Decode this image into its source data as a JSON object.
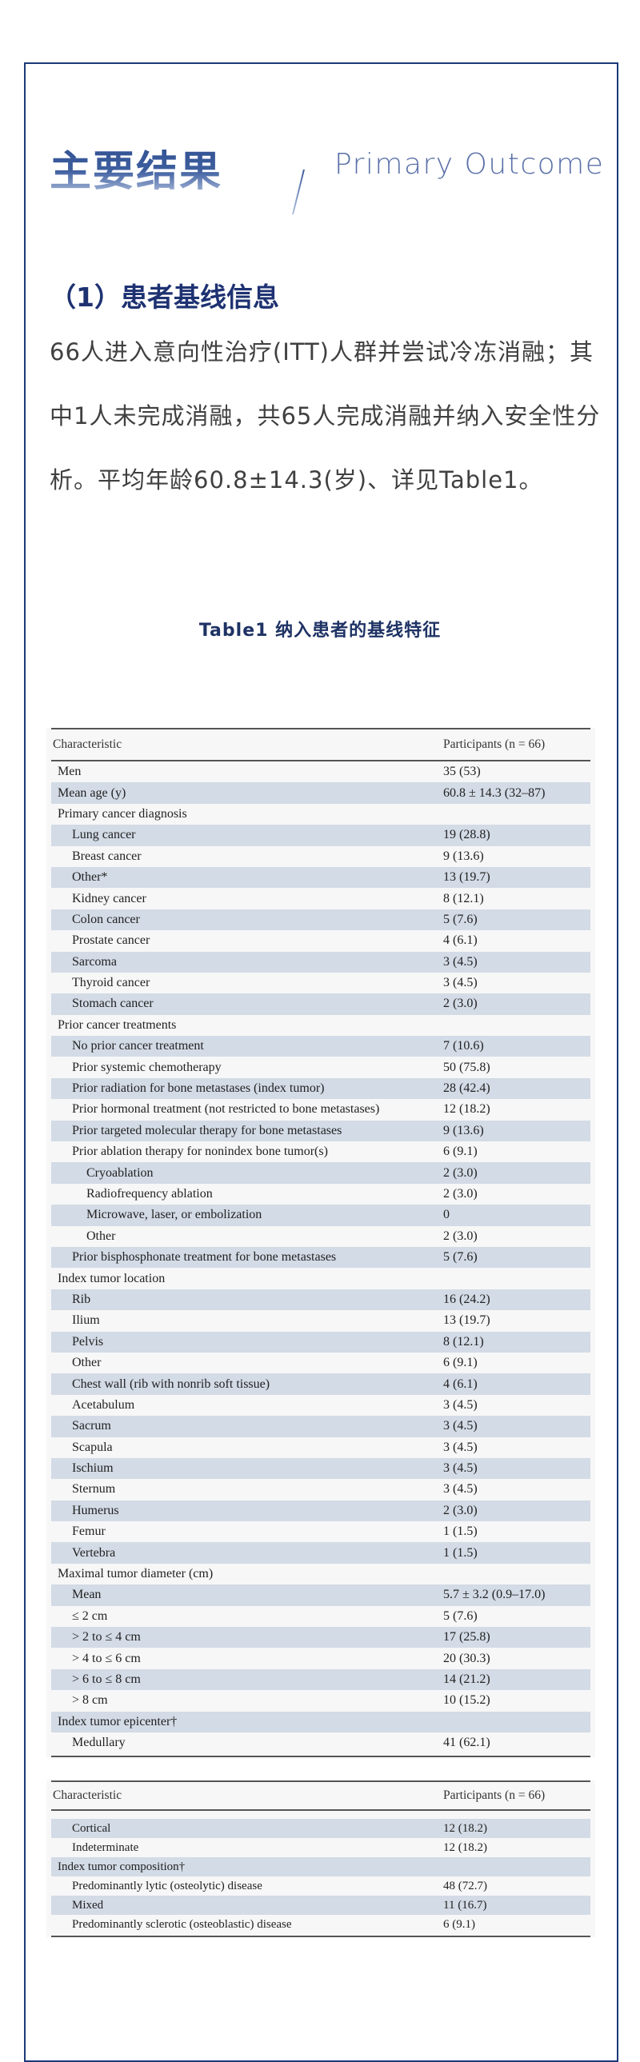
{
  "header": {
    "title_cn": "主要结果",
    "title_en": "Primary Outcome"
  },
  "section": {
    "heading": "（1）患者基线信息",
    "paragraph": "66人进入意向性治疗(ITT)人群并尝试冷冻消融；其中1人未完成消融，共65人完成消融并纳入安全性分析。平均年龄60.8±14.3(岁)、详见Table1。"
  },
  "table": {
    "caption": "Table1 纳入患者的基线特征",
    "col1": "Characteristic",
    "col2": "Participants (n = 66)",
    "rows": [
      {
        "label": "Men",
        "value": "35 (53)",
        "level": 0
      },
      {
        "label": "Mean age (y)",
        "value": "60.8 ± 14.3 (32–87)",
        "level": 0
      },
      {
        "label": "Primary cancer diagnosis",
        "value": "",
        "level": 0
      },
      {
        "label": "Lung cancer",
        "value": "19 (28.8)",
        "level": 1
      },
      {
        "label": "Breast cancer",
        "value": "9 (13.6)",
        "level": 1
      },
      {
        "label": "Other*",
        "value": "13 (19.7)",
        "level": 1
      },
      {
        "label": "Kidney cancer",
        "value": "8 (12.1)",
        "level": 1
      },
      {
        "label": "Colon cancer",
        "value": "5 (7.6)",
        "level": 1
      },
      {
        "label": "Prostate cancer",
        "value": "4 (6.1)",
        "level": 1
      },
      {
        "label": "Sarcoma",
        "value": "3 (4.5)",
        "level": 1
      },
      {
        "label": "Thyroid cancer",
        "value": "3 (4.5)",
        "level": 1
      },
      {
        "label": "Stomach cancer",
        "value": "2 (3.0)",
        "level": 1
      },
      {
        "label": "Prior cancer treatments",
        "value": "",
        "level": 0
      },
      {
        "label": "No prior cancer treatment",
        "value": "7 (10.6)",
        "level": 1
      },
      {
        "label": "Prior systemic chemotherapy",
        "value": "50 (75.8)",
        "level": 1
      },
      {
        "label": "Prior radiation for bone metastases (index tumor)",
        "value": "28 (42.4)",
        "level": 1
      },
      {
        "label": "Prior hormonal treatment (not restricted to bone metastases)",
        "value": "12 (18.2)",
        "level": 1
      },
      {
        "label": "Prior targeted molecular therapy for bone metastases",
        "value": "9 (13.6)",
        "level": 1
      },
      {
        "label": "Prior ablation therapy for nonindex bone tumor(s)",
        "value": "6 (9.1)",
        "level": 1
      },
      {
        "label": "Cryoablation",
        "value": "2 (3.0)",
        "level": 2
      },
      {
        "label": "Radiofrequency ablation",
        "value": "2 (3.0)",
        "level": 2
      },
      {
        "label": "Microwave, laser, or embolization",
        "value": "0",
        "level": 2
      },
      {
        "label": "Other",
        "value": "2 (3.0)",
        "level": 2
      },
      {
        "label": "Prior bisphosphonate treatment for bone metastases",
        "value": "5 (7.6)",
        "level": 1
      },
      {
        "label": "Index tumor location",
        "value": "",
        "level": 0
      },
      {
        "label": "Rib",
        "value": "16 (24.2)",
        "level": 1
      },
      {
        "label": "Ilium",
        "value": "13 (19.7)",
        "level": 1
      },
      {
        "label": "Pelvis",
        "value": "8 (12.1)",
        "level": 1
      },
      {
        "label": "Other",
        "value": "6 (9.1)",
        "level": 1
      },
      {
        "label": "Chest wall (rib with nonrib soft tissue)",
        "value": "4 (6.1)",
        "level": 1
      },
      {
        "label": "Acetabulum",
        "value": "3 (4.5)",
        "level": 1
      },
      {
        "label": "Sacrum",
        "value": "3 (4.5)",
        "level": 1
      },
      {
        "label": "Scapula",
        "value": "3 (4.5)",
        "level": 1
      },
      {
        "label": "Ischium",
        "value": "3 (4.5)",
        "level": 1
      },
      {
        "label": "Sternum",
        "value": "3 (4.5)",
        "level": 1
      },
      {
        "label": "Humerus",
        "value": "2 (3.0)",
        "level": 1
      },
      {
        "label": "Femur",
        "value": "1 (1.5)",
        "level": 1
      },
      {
        "label": "Vertebra",
        "value": "1 (1.5)",
        "level": 1
      },
      {
        "label": "Maximal tumor diameter (cm)",
        "value": "",
        "level": 0
      },
      {
        "label": "Mean",
        "value": "5.7 ± 3.2 (0.9–17.0)",
        "level": 1
      },
      {
        "label": "≤ 2 cm",
        "value": "5 (7.6)",
        "level": 1
      },
      {
        "label": "> 2 to ≤ 4 cm",
        "value": "17 (25.8)",
        "level": 1
      },
      {
        "label": "> 4 to ≤ 6 cm",
        "value": "20 (30.3)",
        "level": 1
      },
      {
        "label": "> 6 to ≤ 8 cm",
        "value": "14 (21.2)",
        "level": 1
      },
      {
        "label": "> 8 cm",
        "value": "10 (15.2)",
        "level": 1
      },
      {
        "label": "Index tumor epicenter†",
        "value": "",
        "level": 0
      },
      {
        "label": "Medullary",
        "value": "41 (62.1)",
        "level": 1
      }
    ],
    "rows_cont": [
      {
        "label": "Cortical",
        "value": "12 (18.2)",
        "level": 1
      },
      {
        "label": "Indeterminate",
        "value": "12 (18.2)",
        "level": 1
      },
      {
        "label": "Index tumor composition†",
        "value": "",
        "level": 0
      },
      {
        "label": "Predominantly lytic (osteolytic) disease",
        "value": "48 (72.7)",
        "level": 1
      },
      {
        "label": "Mixed",
        "value": "11 (16.7)",
        "level": 1
      },
      {
        "label": "Predominantly sclerotic (osteoblastic) disease",
        "value": "6 (9.1)",
        "level": 1
      }
    ]
  },
  "colors": {
    "frame": "#1c3879",
    "heading": "#1e3272",
    "band": "#d3dbe6"
  }
}
